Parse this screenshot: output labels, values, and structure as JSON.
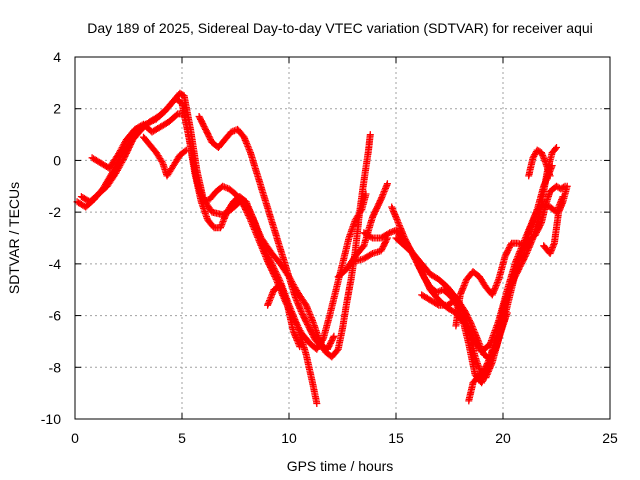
{
  "chart_data": {
    "type": "scatter",
    "title": "Day 189 of 2025, Sidereal Day-to-day VTEC variation (SDTVAR) for receiver aqui",
    "xlabel": "GPS time / hours",
    "ylabel": "SDTVAR / TECUs",
    "xlim": [
      0,
      25
    ],
    "ylim": [
      -10,
      4
    ],
    "xticks": [
      0,
      5,
      10,
      15,
      20,
      25
    ],
    "yticks": [
      -10,
      -8,
      -6,
      -4,
      -2,
      0,
      2,
      4
    ],
    "grid": true,
    "marker": "+",
    "color": "#ff0000",
    "tracks": [
      {
        "points": [
          [
            0.1,
            -1.6
          ],
          [
            0.5,
            -1.8
          ],
          [
            0.9,
            -1.5
          ],
          [
            1.3,
            -1.1
          ],
          [
            1.8,
            -0.4
          ],
          [
            2.3,
            0.4
          ],
          [
            2.8,
            1.0
          ],
          [
            3.3,
            1.4
          ],
          [
            3.8,
            1.6
          ],
          [
            4.2,
            1.9
          ],
          [
            4.6,
            2.3
          ],
          [
            4.9,
            2.6
          ],
          [
            5.1,
            2.5
          ],
          [
            5.4,
            1.2
          ],
          [
            5.7,
            -0.4
          ],
          [
            6.0,
            -1.5
          ],
          [
            6.4,
            -2.0
          ],
          [
            6.9,
            -2.1
          ],
          [
            7.3,
            -1.9
          ],
          [
            7.7,
            -1.6
          ],
          [
            8.0,
            -1.7
          ],
          [
            8.3,
            -2.2
          ],
          [
            8.7,
            -3.0
          ],
          [
            9.2,
            -3.6
          ],
          [
            9.6,
            -4.0
          ],
          [
            10.0,
            -4.5
          ],
          [
            10.4,
            -5.1
          ],
          [
            10.8,
            -5.6
          ],
          [
            11.1,
            -6.2
          ],
          [
            11.4,
            -6.9
          ],
          [
            11.7,
            -7.4
          ],
          [
            12.0,
            -7.6
          ],
          [
            12.3,
            -7.3
          ],
          [
            12.5,
            -6.5
          ],
          [
            12.7,
            -5.5
          ],
          [
            12.9,
            -4.6
          ],
          [
            13.1,
            -3.5
          ],
          [
            13.3,
            -2.0
          ],
          [
            13.5,
            -0.8
          ],
          [
            13.7,
            0.3
          ],
          [
            13.8,
            1.0
          ]
        ]
      },
      {
        "points": [
          [
            0.3,
            -1.4
          ],
          [
            0.7,
            -1.6
          ],
          [
            1.1,
            -1.3
          ],
          [
            1.5,
            -1.0
          ],
          [
            1.9,
            -0.5
          ],
          [
            2.3,
            0.1
          ],
          [
            2.7,
            0.8
          ],
          [
            3.1,
            1.2
          ],
          [
            3.5,
            1.5
          ],
          [
            3.9,
            1.7
          ],
          [
            4.3,
            2.0
          ],
          [
            4.7,
            2.4
          ],
          [
            5.0,
            2.2
          ],
          [
            5.3,
            1.0
          ],
          [
            5.6,
            -0.5
          ],
          [
            5.9,
            -1.6
          ],
          [
            6.2,
            -2.3
          ],
          [
            6.5,
            -2.6
          ],
          [
            6.8,
            -2.6
          ],
          [
            7.1,
            -2.0
          ],
          [
            7.4,
            -1.6
          ],
          [
            7.7,
            -1.4
          ],
          [
            8.0,
            -1.6
          ],
          [
            8.4,
            -2.4
          ],
          [
            8.8,
            -3.4
          ],
          [
            9.2,
            -4.0
          ],
          [
            9.6,
            -4.7
          ],
          [
            10.0,
            -5.6
          ],
          [
            10.4,
            -6.4
          ],
          [
            10.8,
            -7.5
          ],
          [
            11.1,
            -8.6
          ],
          [
            11.3,
            -9.4
          ]
        ]
      },
      {
        "points": [
          [
            0.8,
            0.1
          ],
          [
            1.2,
            -0.1
          ],
          [
            1.6,
            -0.3
          ],
          [
            2.0,
            0.2
          ],
          [
            2.4,
            0.8
          ],
          [
            2.8,
            1.2
          ],
          [
            3.2,
            1.4
          ],
          [
            3.6,
            1.1
          ],
          [
            4.0,
            1.3
          ],
          [
            4.4,
            1.5
          ],
          [
            4.8,
            1.8
          ],
          [
            5.1,
            1.8
          ],
          [
            5.4,
            0.6
          ],
          [
            5.7,
            -0.8
          ],
          [
            6.0,
            -1.6
          ],
          [
            6.3,
            -1.5
          ],
          [
            6.6,
            -1.2
          ],
          [
            6.9,
            -1.0
          ],
          [
            7.2,
            -1.1
          ],
          [
            7.5,
            -1.3
          ],
          [
            7.8,
            -1.6
          ],
          [
            8.2,
            -2.3
          ],
          [
            8.6,
            -3.1
          ],
          [
            9.0,
            -3.9
          ],
          [
            9.4,
            -4.6
          ],
          [
            9.8,
            -5.4
          ],
          [
            10.2,
            -6.1
          ],
          [
            10.6,
            -6.7
          ],
          [
            11.0,
            -7.1
          ],
          [
            11.3,
            -7.3
          ],
          [
            11.6,
            -6.9
          ],
          [
            11.9,
            -6.0
          ],
          [
            12.2,
            -5.0
          ],
          [
            12.5,
            -4.0
          ],
          [
            12.8,
            -3.0
          ],
          [
            13.1,
            -2.3
          ],
          [
            13.4,
            -1.9
          ],
          [
            13.6,
            -1.3
          ]
        ]
      },
      {
        "points": [
          [
            3.2,
            0.9
          ],
          [
            3.5,
            0.6
          ],
          [
            3.8,
            0.3
          ],
          [
            4.1,
            -0.1
          ],
          [
            4.3,
            -0.6
          ],
          [
            4.6,
            -0.2
          ],
          [
            4.9,
            0.2
          ],
          [
            5.2,
            0.4
          ]
        ]
      },
      {
        "points": [
          [
            5.8,
            1.7
          ],
          [
            6.1,
            1.2
          ],
          [
            6.4,
            0.7
          ],
          [
            6.7,
            0.5
          ],
          [
            7.0,
            0.8
          ],
          [
            7.3,
            1.1
          ],
          [
            7.6,
            1.2
          ],
          [
            7.9,
            0.9
          ],
          [
            8.2,
            0.3
          ],
          [
            8.5,
            -0.5
          ],
          [
            8.8,
            -1.3
          ],
          [
            9.1,
            -2.1
          ],
          [
            9.4,
            -2.9
          ],
          [
            9.7,
            -3.7
          ],
          [
            10.0,
            -4.5
          ],
          [
            10.3,
            -5.3
          ],
          [
            10.6,
            -5.9
          ],
          [
            10.9,
            -6.4
          ],
          [
            11.2,
            -6.9
          ],
          [
            11.5,
            -7.2
          ],
          [
            11.8,
            -7.3
          ],
          [
            12.1,
            -6.8
          ]
        ]
      },
      {
        "points": [
          [
            9.0,
            -5.6
          ],
          [
            9.3,
            -5.0
          ],
          [
            9.6,
            -4.8
          ],
          [
            9.9,
            -5.5
          ],
          [
            10.2,
            -6.6
          ],
          [
            10.5,
            -7.2
          ]
        ]
      },
      {
        "points": [
          [
            12.3,
            -4.5
          ],
          [
            12.7,
            -4.2
          ],
          [
            13.1,
            -3.7
          ],
          [
            13.5,
            -3.3
          ],
          [
            13.9,
            -2.2
          ],
          [
            14.3,
            -1.5
          ],
          [
            14.6,
            -0.9
          ]
        ]
      },
      {
        "points": [
          [
            13.1,
            -3.9
          ],
          [
            13.5,
            -3.8
          ],
          [
            13.9,
            -3.6
          ],
          [
            14.3,
            -3.5
          ],
          [
            14.6,
            -3.0
          ]
        ]
      },
      {
        "points": [
          [
            13.5,
            -2.8
          ],
          [
            13.9,
            -3.0
          ],
          [
            14.3,
            -3.0
          ],
          [
            14.7,
            -2.8
          ],
          [
            15.0,
            -2.7
          ],
          [
            15.4,
            -3.1
          ],
          [
            15.8,
            -3.6
          ],
          [
            16.2,
            -4.0
          ],
          [
            16.6,
            -4.4
          ],
          [
            17.0,
            -4.6
          ],
          [
            17.4,
            -4.9
          ],
          [
            17.8,
            -5.3
          ],
          [
            18.2,
            -5.8
          ],
          [
            18.5,
            -6.3
          ],
          [
            18.8,
            -6.9
          ],
          [
            19.1,
            -7.5
          ],
          [
            19.4,
            -7.7
          ],
          [
            19.7,
            -7.2
          ],
          [
            20.0,
            -6.3
          ],
          [
            20.3,
            -5.3
          ],
          [
            20.6,
            -4.3
          ],
          [
            20.9,
            -3.5
          ],
          [
            21.2,
            -3.1
          ],
          [
            21.5,
            -2.9
          ],
          [
            21.8,
            -2.4
          ],
          [
            22.0,
            -1.7
          ],
          [
            22.2,
            -1.2
          ],
          [
            22.5,
            -1.0
          ],
          [
            22.7,
            -1.1
          ],
          [
            22.9,
            -1.0
          ]
        ]
      },
      {
        "points": [
          [
            14.8,
            -1.8
          ],
          [
            15.1,
            -2.4
          ],
          [
            15.4,
            -3.0
          ],
          [
            15.7,
            -3.5
          ],
          [
            16.0,
            -4.0
          ],
          [
            16.3,
            -4.5
          ],
          [
            16.6,
            -4.9
          ],
          [
            16.9,
            -5.1
          ],
          [
            17.2,
            -5.0
          ],
          [
            17.5,
            -5.2
          ],
          [
            17.8,
            -5.5
          ],
          [
            18.1,
            -6.1
          ],
          [
            18.4,
            -7.1
          ],
          [
            18.7,
            -8.3
          ],
          [
            19.0,
            -8.6
          ],
          [
            19.3,
            -8.1
          ],
          [
            19.6,
            -7.1
          ],
          [
            19.9,
            -6.0
          ],
          [
            20.2,
            -5.2
          ],
          [
            20.5,
            -4.6
          ],
          [
            20.8,
            -4.1
          ],
          [
            21.1,
            -3.6
          ],
          [
            21.4,
            -3.0
          ],
          [
            21.7,
            -2.1
          ],
          [
            21.9,
            -1.2
          ],
          [
            22.1,
            -0.3
          ],
          [
            22.3,
            0.3
          ],
          [
            22.5,
            0.5
          ]
        ]
      },
      {
        "points": [
          [
            15.0,
            -3.0
          ],
          [
            15.4,
            -3.3
          ],
          [
            15.8,
            -3.6
          ],
          [
            16.2,
            -4.3
          ],
          [
            16.6,
            -5.0
          ],
          [
            17.0,
            -5.4
          ],
          [
            17.4,
            -5.7
          ],
          [
            17.8,
            -5.9
          ],
          [
            18.2,
            -6.3
          ],
          [
            18.6,
            -6.9
          ],
          [
            19.0,
            -7.4
          ],
          [
            19.4,
            -7.1
          ],
          [
            19.8,
            -6.2
          ],
          [
            20.2,
            -5.0
          ],
          [
            20.6,
            -3.9
          ],
          [
            21.0,
            -3.1
          ],
          [
            21.3,
            -2.5
          ],
          [
            21.6,
            -1.9
          ],
          [
            21.9,
            -1.0
          ],
          [
            22.1,
            -0.6
          ],
          [
            22.3,
            -0.2
          ]
        ]
      },
      {
        "points": [
          [
            16.2,
            -5.2
          ],
          [
            16.6,
            -5.4
          ],
          [
            17.0,
            -5.6
          ],
          [
            17.4,
            -5.6
          ],
          [
            17.8,
            -5.4
          ],
          [
            18.1,
            -5.8
          ],
          [
            18.4,
            -6.5
          ],
          [
            18.7,
            -7.6
          ],
          [
            19.0,
            -8.3
          ],
          [
            19.3,
            -7.8
          ],
          [
            19.6,
            -7.1
          ],
          [
            19.9,
            -6.6
          ],
          [
            20.2,
            -5.9
          ]
        ]
      },
      {
        "points": [
          [
            17.8,
            -6.4
          ],
          [
            18.0,
            -5.2
          ],
          [
            18.3,
            -4.6
          ],
          [
            18.6,
            -4.3
          ],
          [
            18.9,
            -4.5
          ],
          [
            19.2,
            -4.9
          ],
          [
            19.5,
            -5.2
          ],
          [
            19.8,
            -4.6
          ],
          [
            20.1,
            -3.7
          ],
          [
            20.4,
            -3.2
          ],
          [
            20.7,
            -3.2
          ],
          [
            21.0,
            -3.3
          ],
          [
            21.3,
            -2.6
          ],
          [
            21.6,
            -1.9
          ],
          [
            21.9,
            -1.7
          ],
          [
            22.2,
            -1.8
          ],
          [
            22.5,
            -2.0
          ],
          [
            22.8,
            -1.4
          ]
        ]
      },
      {
        "points": [
          [
            18.4,
            -9.3
          ],
          [
            18.6,
            -8.6
          ],
          [
            18.9,
            -8.3
          ],
          [
            19.2,
            -8.4
          ],
          [
            19.5,
            -7.8
          ],
          [
            19.8,
            -6.9
          ],
          [
            20.1,
            -6.1
          ]
        ]
      },
      {
        "points": [
          [
            21.9,
            -3.3
          ],
          [
            22.2,
            -3.6
          ],
          [
            22.4,
            -3.2
          ],
          [
            22.6,
            -2.0
          ],
          [
            22.8,
            -1.6
          ],
          [
            23.0,
            -1.0
          ]
        ]
      },
      {
        "points": [
          [
            21.2,
            -0.6
          ],
          [
            21.4,
            0.1
          ],
          [
            21.6,
            0.4
          ],
          [
            21.8,
            0.3
          ],
          [
            22.0,
            -0.1
          ],
          [
            22.2,
            -0.6
          ]
        ]
      }
    ]
  }
}
